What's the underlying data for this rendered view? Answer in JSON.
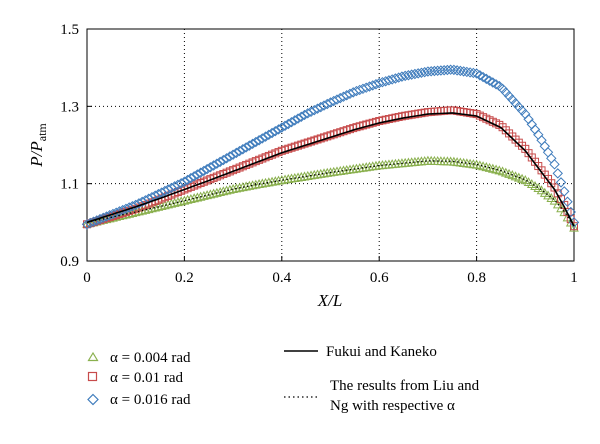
{
  "chart_data": {
    "type": "line",
    "xlabel": "X/L",
    "ylabel": {
      "base": "P/P",
      "subscript": "atm"
    },
    "xlim": [
      0,
      1
    ],
    "ylim": [
      0.9,
      1.5
    ],
    "xticks": [
      "0",
      "0.2",
      "0.4",
      "0.6",
      "0.8",
      "1"
    ],
    "yticks": [
      "0.9",
      "1.1",
      "1.3",
      "1.5"
    ],
    "grid": "dotted",
    "x": [
      0,
      0.05,
      0.1,
      0.15,
      0.2,
      0.25,
      0.3,
      0.35,
      0.4,
      0.45,
      0.5,
      0.55,
      0.6,
      0.65,
      0.7,
      0.75,
      0.8,
      0.85,
      0.9,
      0.93,
      0.96,
      0.98,
      1.0
    ],
    "series": [
      {
        "name": "α = 0.004 rad",
        "marker": "triangle",
        "color": "#8ab04e",
        "values": [
          0.995,
          1.01,
          1.025,
          1.04,
          1.055,
          1.07,
          1.085,
          1.097,
          1.108,
          1.118,
          1.128,
          1.137,
          1.146,
          1.152,
          1.158,
          1.156,
          1.148,
          1.132,
          1.108,
          1.085,
          1.055,
          1.025,
          0.985
        ]
      },
      {
        "name": "α = 0.01 rad",
        "marker": "square",
        "color": "#c74b4b",
        "values": [
          0.995,
          1.015,
          1.035,
          1.06,
          1.085,
          1.11,
          1.135,
          1.16,
          1.185,
          1.205,
          1.225,
          1.245,
          1.262,
          1.275,
          1.285,
          1.29,
          1.28,
          1.25,
          1.19,
          1.14,
          1.09,
          1.045,
          0.99
        ]
      },
      {
        "name": "α = 0.016 rad",
        "marker": "diamond",
        "color": "#3f7cbc",
        "values": [
          0.995,
          1.02,
          1.045,
          1.075,
          1.105,
          1.14,
          1.175,
          1.21,
          1.245,
          1.28,
          1.31,
          1.338,
          1.36,
          1.378,
          1.39,
          1.395,
          1.385,
          1.35,
          1.28,
          1.22,
          1.15,
          1.08,
          1.0
        ]
      },
      {
        "name": "Fukui and Kaneko",
        "style": "solid",
        "color": "#000000",
        "values": [
          1.0,
          1.02,
          1.04,
          1.062,
          1.085,
          1.108,
          1.132,
          1.156,
          1.18,
          1.2,
          1.22,
          1.24,
          1.257,
          1.27,
          1.28,
          1.283,
          1.275,
          1.245,
          1.185,
          1.135,
          1.085,
          1.04,
          0.99
        ]
      },
      {
        "name": "The results from Liu and Ng with respective α",
        "style": "dotted",
        "color": "#000000",
        "values": [
          1.0,
          1.013,
          1.027,
          1.041,
          1.056,
          1.071,
          1.086,
          1.098,
          1.109,
          1.119,
          1.129,
          1.138,
          1.147,
          1.153,
          1.159,
          1.158,
          1.15,
          1.134,
          1.11,
          1.087,
          1.058,
          1.028,
          0.99
        ]
      }
    ]
  },
  "legend": {
    "items": [
      {
        "label": "α = 0.004 rad",
        "marker": "triangle",
        "color": "#8ab04e"
      },
      {
        "label": "α = 0.01 rad",
        "marker": "square",
        "color": "#c74b4b"
      },
      {
        "label": "α = 0.016 rad",
        "marker": "diamond",
        "color": "#3f7cbc"
      },
      {
        "label": "Fukui and Kaneko",
        "style": "solid"
      },
      {
        "label_lines": [
          "The results from Liu and",
          "Ng with respective α"
        ],
        "style": "dotted"
      }
    ]
  }
}
